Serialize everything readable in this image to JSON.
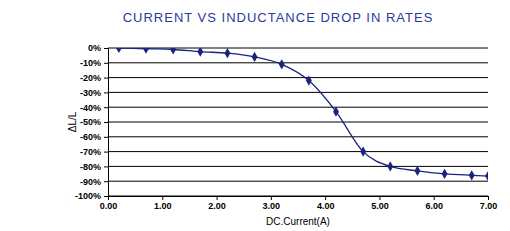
{
  "chart_data": {
    "type": "line",
    "title": "CURRENT VS INDUCTANCE DROP IN RATES",
    "x_label": "DC.Current(A)",
    "y_label": "ΔL/L",
    "x": [
      0.2,
      0.7,
      1.2,
      1.7,
      2.2,
      2.7,
      3.2,
      3.7,
      4.2,
      4.7,
      5.2,
      5.7,
      6.2,
      6.7,
      7.0
    ],
    "values": [
      0,
      -0.5,
      -1,
      -2.5,
      -3.5,
      -6,
      -11,
      -22,
      -43,
      -70,
      -80,
      -83,
      -85,
      -86,
      -86.5
    ],
    "color": "#1a237e",
    "marker": "diamond",
    "line_style": "solid",
    "xlim": [
      0,
      7
    ],
    "xticks": [
      {
        "value": 0,
        "label": "0.00"
      },
      {
        "value": 1,
        "label": "1.00"
      },
      {
        "value": 2,
        "label": "2.00"
      },
      {
        "value": 3,
        "label": "3.00"
      },
      {
        "value": 4,
        "label": "4.00"
      },
      {
        "value": 5,
        "label": "5.00"
      },
      {
        "value": 6,
        "label": "6.00"
      },
      {
        "value": 7,
        "label": "7.00"
      }
    ],
    "ylim": [
      -100,
      0
    ],
    "yticks": [
      {
        "value": 0,
        "label": "0%"
      },
      {
        "value": -10,
        "label": "-10%"
      },
      {
        "value": -20,
        "label": "-20%"
      },
      {
        "value": -30,
        "label": "-30%"
      },
      {
        "value": -40,
        "label": "-40%"
      },
      {
        "value": -50,
        "label": "-50%"
      },
      {
        "value": -60,
        "label": "-60%"
      },
      {
        "value": -70,
        "label": "-70%"
      },
      {
        "value": -80,
        "label": "-80%"
      },
      {
        "value": -90,
        "label": "-90%"
      },
      {
        "value": -100,
        "label": "-100%"
      }
    ],
    "grid": true
  }
}
